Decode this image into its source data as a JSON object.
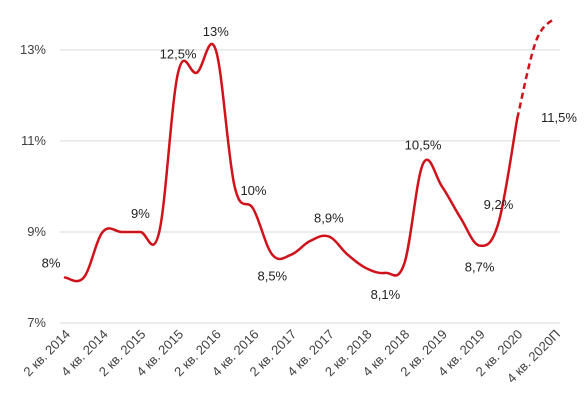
{
  "chart_data": {
    "type": "line",
    "title": "",
    "xlabel": "",
    "ylabel": "",
    "ylim": [
      7,
      13.7
    ],
    "y_ticks": [
      7,
      9,
      11,
      13
    ],
    "y_tick_labels": [
      "7%",
      "9%",
      "11%",
      "13%"
    ],
    "grid": "horizontal",
    "line_color": "#d0121b",
    "x_tick_labels": [
      "2 кв. 2014",
      "4 кв. 2014",
      "2 кв. 2015",
      "4 кв. 2015",
      "2 кв. 2016",
      "4 кв. 2016",
      "2 кв. 2017",
      "4 кв. 2017",
      "2 кв. 2018",
      "4 кв. 2018",
      "2 кв. 2019",
      "4 кв. 2019",
      "2 кв. 2020",
      "4 кв. 2020П"
    ],
    "series": [
      {
        "style": "solid",
        "points": [
          [
            0,
            8.0
          ],
          [
            0.5,
            8.0
          ],
          [
            1,
            9.0
          ],
          [
            1.5,
            9.0
          ],
          [
            2,
            9.0
          ],
          [
            2.5,
            9.0
          ],
          [
            3,
            12.5
          ],
          [
            3.5,
            12.5
          ],
          [
            4,
            13.0
          ],
          [
            4.5,
            10.0
          ],
          [
            5,
            9.5
          ],
          [
            5.5,
            8.5
          ],
          [
            6,
            8.5
          ],
          [
            6.5,
            8.8
          ],
          [
            7,
            8.9
          ],
          [
            7.5,
            8.5
          ],
          [
            8,
            8.2
          ],
          [
            8.5,
            8.1
          ],
          [
            9,
            8.3
          ],
          [
            9.5,
            10.5
          ],
          [
            10,
            10.0
          ],
          [
            10.5,
            9.3
          ],
          [
            11,
            8.7
          ],
          [
            11.5,
            9.2
          ],
          [
            12,
            11.5
          ]
        ]
      },
      {
        "style": "dashed",
        "points": [
          [
            12,
            11.5
          ],
          [
            12.5,
            13.2
          ],
          [
            13,
            13.7
          ]
        ]
      }
    ],
    "data_labels": [
      {
        "text": "8%",
        "x": 0,
        "y": 8.0,
        "pos": "left-above"
      },
      {
        "text": "9%",
        "x": 2,
        "y": 9.0,
        "pos": "above"
      },
      {
        "text": "12,5%",
        "x": 3,
        "y": 12.5,
        "pos": "above"
      },
      {
        "text": "13%",
        "x": 4,
        "y": 13.0,
        "pos": "above"
      },
      {
        "text": "10%",
        "x": 5,
        "y": 9.5,
        "pos": "above"
      },
      {
        "text": "8,5%",
        "x": 5.5,
        "y": 8.5,
        "pos": "below"
      },
      {
        "text": "8,9%",
        "x": 7,
        "y": 8.9,
        "pos": "above"
      },
      {
        "text": "8,1%",
        "x": 8.5,
        "y": 8.1,
        "pos": "below"
      },
      {
        "text": "10,5%",
        "x": 9.5,
        "y": 10.5,
        "pos": "above"
      },
      {
        "text": "8,7%",
        "x": 11,
        "y": 8.7,
        "pos": "below"
      },
      {
        "text": "9,2%",
        "x": 11.5,
        "y": 9.2,
        "pos": "above"
      },
      {
        "text": "11,5%",
        "x": 13,
        "y": 11.5,
        "pos": "right"
      }
    ]
  }
}
